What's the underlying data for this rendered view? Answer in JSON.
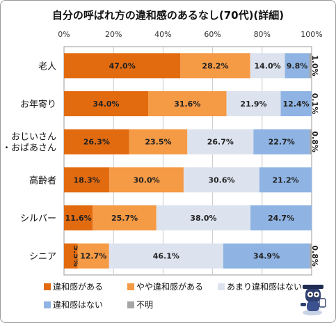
{
  "chart_data": {
    "type": "bar",
    "orientation": "horizontal",
    "stacked": "percent",
    "title": "自分の呼ばれ方の違和感のあるなし(70代)(詳細)",
    "categories": [
      "老人",
      "お年寄り",
      "おじいさん\n・おばあさん",
      "高齢者",
      "シルバー",
      "シニア"
    ],
    "series": [
      {
        "name": "違和感がある",
        "color": "#e26b10",
        "values": [
          47.0,
          34.0,
          26.3,
          18.3,
          11.6,
          5.5
        ]
      },
      {
        "name": "やや違和感がある",
        "color": "#f59a45",
        "values": [
          28.2,
          31.6,
          23.5,
          30.0,
          25.7,
          12.7
        ]
      },
      {
        "name": "あまり違和感はない",
        "color": "#dce3ef",
        "values": [
          14.0,
          21.9,
          26.7,
          30.6,
          38.0,
          46.1
        ]
      },
      {
        "name": "違和感はない",
        "color": "#8fb4e3",
        "values": [
          9.8,
          12.4,
          22.7,
          21.2,
          24.7,
          34.9
        ]
      },
      {
        "name": "不明",
        "color": "#a6a6a6",
        "values": [
          1.0,
          0.1,
          0.8,
          null,
          null,
          0.8
        ]
      }
    ],
    "value_labels": [
      [
        "47.0%",
        "28.2%",
        "14.0%",
        "9.8%",
        "1.0%"
      ],
      [
        "34.0%",
        "31.6%",
        "21.9%",
        "12.4%",
        "0.1%"
      ],
      [
        "26.3%",
        "23.5%",
        "26.7%",
        "22.7%",
        "0.8%"
      ],
      [
        "18.3%",
        "30.0%",
        "30.6%",
        "21.2%",
        ""
      ],
      [
        "11.6%",
        "25.7%",
        "38.0%",
        "24.7%",
        ""
      ],
      [
        "5.5%",
        "12.7%",
        "46.1%",
        "34.9%",
        "0.8%"
      ]
    ],
    "xlim": [
      0,
      100
    ],
    "xticks": [
      "0%",
      "20%",
      "40%",
      "60%",
      "80%",
      "100%"
    ],
    "grid": true,
    "legend_position": "bottom"
  }
}
